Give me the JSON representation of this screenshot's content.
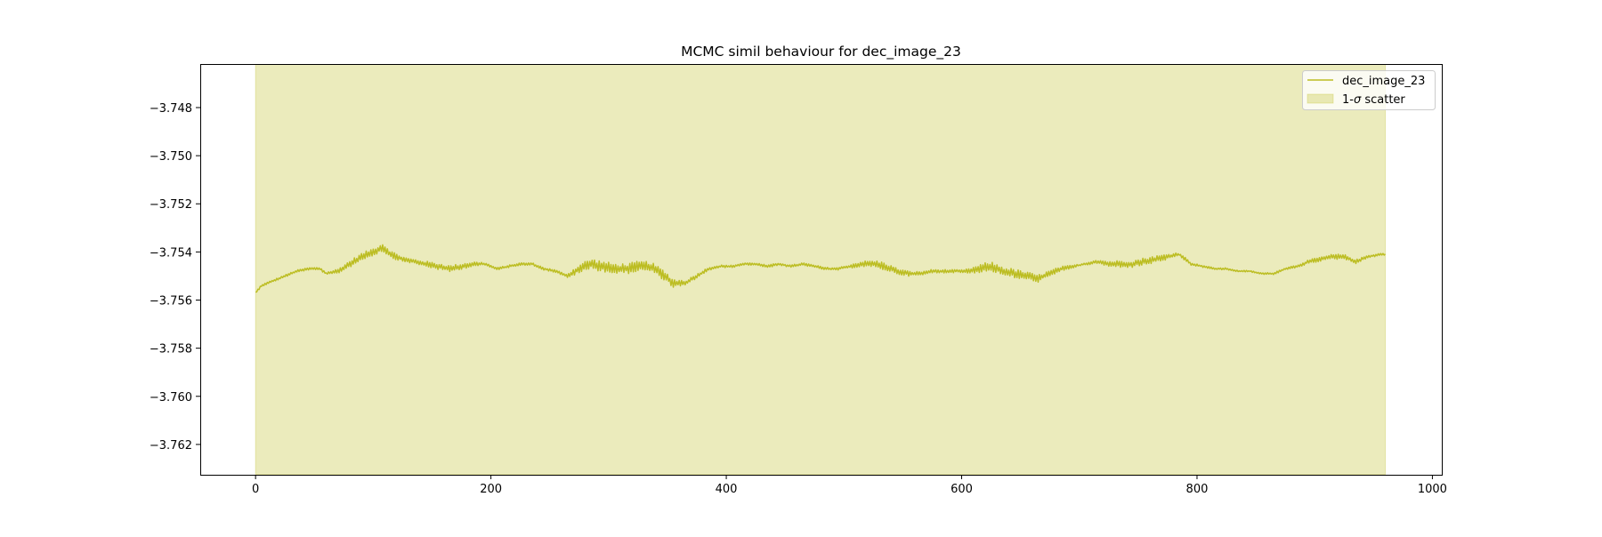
{
  "chart_data": {
    "type": "line",
    "title": "MCMC simil behaviour for dec_image_23",
    "xlabel": "",
    "ylabel": "",
    "xlim": [
      -47,
      1008
    ],
    "ylim": [
      -3.76326,
      -3.74619
    ],
    "xticks": [
      0,
      200,
      400,
      600,
      800,
      1000
    ],
    "xtick_labels": [
      "0",
      "200",
      "400",
      "600",
      "800",
      "1000"
    ],
    "yticks": [
      -3.748,
      -3.75,
      -3.752,
      -3.754,
      -3.756,
      -3.758,
      -3.76,
      -3.762
    ],
    "ytick_labels": [
      "−3.748",
      "−3.750",
      "−3.752",
      "−3.754",
      "−3.756",
      "−3.758",
      "−3.760",
      "−3.762"
    ],
    "grid": false,
    "legend_placement": "top-right",
    "series": [
      {
        "name": "dec_image_23",
        "color": "#bcbd22",
        "trend_x": [
          0,
          5,
          15,
          25,
          35,
          45,
          55,
          60,
          70,
          80,
          90,
          100,
          108,
          115,
          125,
          135,
          145,
          155,
          165,
          175,
          185,
          195,
          205,
          215,
          225,
          235,
          245,
          255,
          265,
          275,
          285,
          295,
          305,
          315,
          325,
          335,
          345,
          355,
          365,
          375,
          385,
          395,
          405,
          415,
          425,
          435,
          445,
          455,
          465,
          475,
          485,
          495,
          505,
          515,
          525,
          535,
          545,
          555,
          565,
          575,
          585,
          595,
          605,
          615,
          625,
          635,
          645,
          655,
          665,
          675,
          685,
          695,
          705,
          715,
          725,
          735,
          745,
          755,
          765,
          775,
          785,
          795,
          805,
          815,
          825,
          835,
          845,
          855,
          865,
          875,
          885,
          895,
          905,
          915,
          925,
          935,
          945,
          955,
          960
        ],
        "trend_y": [
          -3.7557,
          -3.7554,
          -3.7552,
          -3.755,
          -3.7548,
          -3.7547,
          -3.7547,
          -3.7549,
          -3.7548,
          -3.7545,
          -3.7542,
          -3.754,
          -3.7538,
          -3.7541,
          -3.7543,
          -3.7544,
          -3.7545,
          -3.7546,
          -3.7547,
          -3.7546,
          -3.7545,
          -3.7545,
          -3.7547,
          -3.7546,
          -3.7545,
          -3.7545,
          -3.7547,
          -3.7548,
          -3.755,
          -3.7547,
          -3.7545,
          -3.7546,
          -3.7547,
          -3.7547,
          -3.7546,
          -3.7546,
          -3.7549,
          -3.7553,
          -3.7553,
          -3.755,
          -3.7547,
          -3.7546,
          -3.7546,
          -3.7545,
          -3.7545,
          -3.7546,
          -3.7545,
          -3.7546,
          -3.7545,
          -3.7546,
          -3.7547,
          -3.7547,
          -3.7546,
          -3.7545,
          -3.7545,
          -3.7546,
          -3.7548,
          -3.7549,
          -3.7549,
          -3.7548,
          -3.7548,
          -3.7548,
          -3.7548,
          -3.7547,
          -3.7546,
          -3.7548,
          -3.7549,
          -3.755,
          -3.7551,
          -3.7549,
          -3.7547,
          -3.7546,
          -3.7545,
          -3.7544,
          -3.7545,
          -3.7545,
          -3.7545,
          -3.7544,
          -3.7543,
          -3.7542,
          -3.7541,
          -3.7545,
          -3.7546,
          -3.7547,
          -3.7547,
          -3.7548,
          -3.7548,
          -3.7549,
          -3.7549,
          -3.7547,
          -3.7546,
          -3.7544,
          -3.7543,
          -3.7542,
          -3.7542,
          -3.7544,
          -3.7542,
          -3.7541,
          -3.7541
        ],
        "noise_amp_x": [
          0,
          60,
          80,
          110,
          130,
          160,
          180,
          200,
          260,
          280,
          300,
          350,
          370,
          400,
          500,
          530,
          560,
          600,
          620,
          650,
          680,
          700,
          730,
          760,
          800,
          850,
          880,
          920,
          960
        ],
        "noise_amp_y": [
          8e-05,
          0.00012,
          0.00028,
          0.00035,
          0.00018,
          0.0003,
          0.00022,
          0.0001,
          0.00012,
          0.00045,
          0.00045,
          0.00042,
          0.0002,
          0.0001,
          0.00012,
          0.00035,
          0.00018,
          0.00012,
          0.0004,
          0.00038,
          0.00025,
          8e-05,
          0.00028,
          0.00032,
          0.0001,
          6e-05,
          0.00012,
          0.00022,
          8e-05
        ]
      }
    ],
    "scatter_band": {
      "name": "1-σ scatter",
      "color": "#bcbd22",
      "x_range": [
        0,
        960
      ],
      "y_range": [
        -3.76326,
        -3.74619
      ]
    },
    "legend": [
      {
        "label": "dec_image_23",
        "kind": "line"
      },
      {
        "label": "1-",
        "sigma": "σ",
        "suffix": " scatter",
        "kind": "patch"
      }
    ]
  }
}
